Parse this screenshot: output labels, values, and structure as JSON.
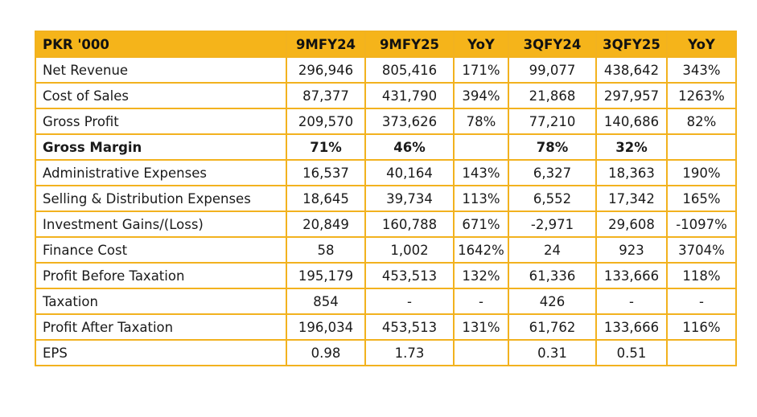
{
  "table": {
    "headers": [
      "PKR '000",
      "9MFY24",
      "9MFY25",
      "YoY",
      "3QFY24",
      "3QFY25",
      "YoY"
    ],
    "rows": [
      {
        "label": "Net Revenue",
        "values": [
          "296,946",
          "805,416",
          "171%",
          "99,077",
          "438,642",
          "343%"
        ],
        "bold": false
      },
      {
        "label": "Cost of Sales",
        "values": [
          "87,377",
          "431,790",
          "394%",
          "21,868",
          "297,957",
          "1263%"
        ],
        "bold": false
      },
      {
        "label": "Gross Profit",
        "values": [
          "209,570",
          "373,626",
          "78%",
          "77,210",
          "140,686",
          "82%"
        ],
        "bold": false
      },
      {
        "label": "Gross Margin",
        "values": [
          "71%",
          "46%",
          "",
          "78%",
          "32%",
          ""
        ],
        "bold": true
      },
      {
        "label": "Administrative Expenses",
        "values": [
          "16,537",
          "40,164",
          "143%",
          "6,327",
          "18,363",
          "190%"
        ],
        "bold": false
      },
      {
        "label": "Selling & Distribution Expenses",
        "values": [
          "18,645",
          "39,734",
          "113%",
          "6,552",
          "17,342",
          "165%"
        ],
        "bold": false
      },
      {
        "label": "Investment Gains/(Loss)",
        "values": [
          "20,849",
          "160,788",
          "671%",
          "-2,971",
          "29,608",
          "-1097%"
        ],
        "bold": false
      },
      {
        "label": "Finance Cost",
        "values": [
          "58",
          "1,002",
          "1642%",
          "24",
          "923",
          "3704%"
        ],
        "bold": false
      },
      {
        "label": "Profit Before Taxation",
        "values": [
          "195,179",
          "453,513",
          "132%",
          "61,336",
          "133,666",
          "118%"
        ],
        "bold": false
      },
      {
        "label": "Taxation",
        "values": [
          "854",
          "-",
          "-",
          "426",
          "-",
          "-"
        ],
        "bold": false
      },
      {
        "label": "Profit After Taxation",
        "values": [
          "196,034",
          "453,513",
          "131%",
          "61,762",
          "133,666",
          "116%"
        ],
        "bold": false
      },
      {
        "label": "EPS",
        "values": [
          "0.98",
          "1.73",
          "",
          "0.31",
          "0.51",
          ""
        ],
        "bold": false
      }
    ]
  },
  "colors": {
    "header_bg": "#f5b41a",
    "border": "#f2b21f"
  }
}
